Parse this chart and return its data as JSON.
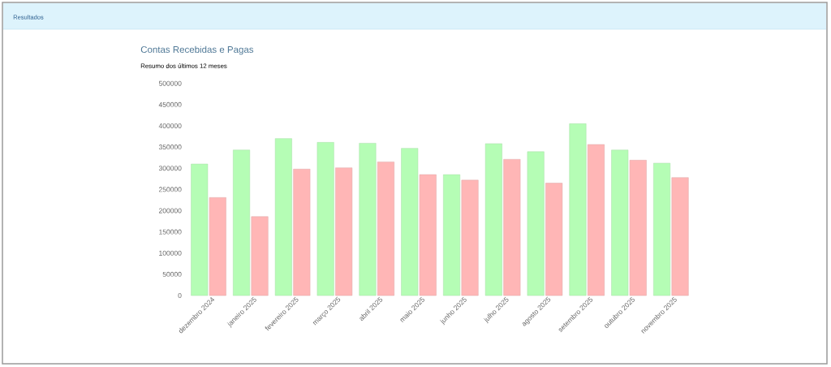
{
  "chart_data": {
    "type": "bar",
    "title": "Contas Recebidas e Pagas",
    "subtitle": "Resumo dos últimos 12 meses",
    "annotations": [
      "Resultados"
    ],
    "categories": [
      "dezembro 2024",
      "janeiro 2025",
      "fevereiro 2025",
      "março 2025",
      "abril 2025",
      "maio 2025",
      "junho 2025",
      "julho 2025",
      "agosto 2025",
      "setembro 2025",
      "outubro 2025",
      "novembro 2025"
    ],
    "series": [
      {
        "color": "#b5fdb5",
        "values": [
          310000,
          343000,
          370000,
          361000,
          359000,
          347000,
          285000,
          358000,
          339000,
          405000,
          343000,
          312000
        ]
      },
      {
        "color": "#ffb6b6",
        "values": [
          231000,
          186000,
          298000,
          301000,
          315000,
          285000,
          272000,
          321000,
          265000,
          356000,
          319000,
          278000
        ]
      }
    ],
    "ylim": [
      0,
      500000
    ],
    "yticks": [
      0,
      50000,
      100000,
      150000,
      200000,
      250000,
      300000,
      350000,
      400000,
      450000,
      500000
    ]
  }
}
